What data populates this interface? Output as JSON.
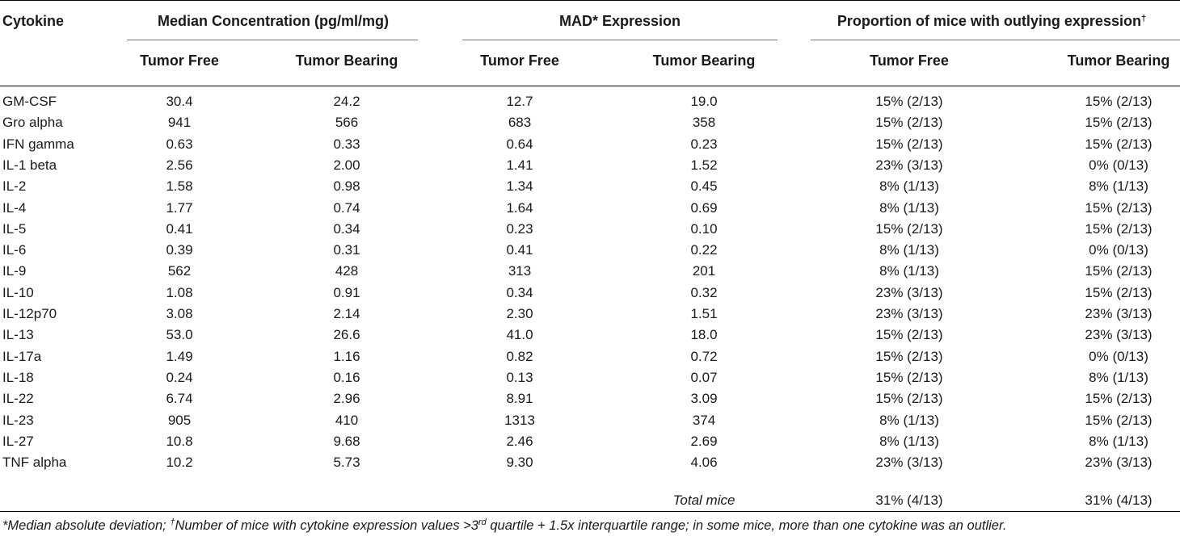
{
  "headers": {
    "cytokine": "Cytokine",
    "median": "Median Concentration (pg/ml/mg)",
    "mad": "MAD* Expression",
    "proportion": "Proportion of mice with outlying expression",
    "proportion_mark": "†",
    "tumor_free": "Tumor Free",
    "tumor_bearing": "Tumor Bearing"
  },
  "rows": [
    {
      "cytokine": "GM-CSF",
      "med_tf": "30.4",
      "med_tb": "24.2",
      "mad_tf": "12.7",
      "mad_tb": "19.0",
      "prop_tf": "15% (2/13)",
      "prop_tb": "15% (2/13)"
    },
    {
      "cytokine": "Gro alpha",
      "med_tf": "941",
      "med_tb": "566",
      "mad_tf": "683",
      "mad_tb": "358",
      "prop_tf": "15% (2/13)",
      "prop_tb": "15% (2/13)"
    },
    {
      "cytokine": "IFN gamma",
      "med_tf": "0.63",
      "med_tb": "0.33",
      "mad_tf": "0.64",
      "mad_tb": "0.23",
      "prop_tf": "15% (2/13)",
      "prop_tb": "15% (2/13)"
    },
    {
      "cytokine": "IL-1 beta",
      "med_tf": "2.56",
      "med_tb": "2.00",
      "mad_tf": "1.41",
      "mad_tb": "1.52",
      "prop_tf": "23% (3/13)",
      "prop_tb": "0% (0/13)"
    },
    {
      "cytokine": "IL-2",
      "med_tf": "1.58",
      "med_tb": "0.98",
      "mad_tf": "1.34",
      "mad_tb": "0.45",
      "prop_tf": "8% (1/13)",
      "prop_tb": "8% (1/13)"
    },
    {
      "cytokine": "IL-4",
      "med_tf": "1.77",
      "med_tb": "0.74",
      "mad_tf": "1.64",
      "mad_tb": "0.69",
      "prop_tf": "8% (1/13)",
      "prop_tb": "15% (2/13)"
    },
    {
      "cytokine": "IL-5",
      "med_tf": "0.41",
      "med_tb": "0.34",
      "mad_tf": "0.23",
      "mad_tb": "0.10",
      "prop_tf": "15% (2/13)",
      "prop_tb": "15% (2/13)"
    },
    {
      "cytokine": "IL-6",
      "med_tf": "0.39",
      "med_tb": "0.31",
      "mad_tf": "0.41",
      "mad_tb": "0.22",
      "prop_tf": "8% (1/13)",
      "prop_tb": "0% (0/13)"
    },
    {
      "cytokine": "IL-9",
      "med_tf": "562",
      "med_tb": "428",
      "mad_tf": "313",
      "mad_tb": "201",
      "prop_tf": "8% (1/13)",
      "prop_tb": "15% (2/13)"
    },
    {
      "cytokine": "IL-10",
      "med_tf": "1.08",
      "med_tb": "0.91",
      "mad_tf": "0.34",
      "mad_tb": "0.32",
      "prop_tf": "23% (3/13)",
      "prop_tb": "15% (2/13)"
    },
    {
      "cytokine": "IL-12p70",
      "med_tf": "3.08",
      "med_tb": "2.14",
      "mad_tf": "2.30",
      "mad_tb": "1.51",
      "prop_tf": "23% (3/13)",
      "prop_tb": "23% (3/13)"
    },
    {
      "cytokine": "IL-13",
      "med_tf": "53.0",
      "med_tb": "26.6",
      "mad_tf": "41.0",
      "mad_tb": "18.0",
      "prop_tf": "15% (2/13)",
      "prop_tb": "23% (3/13)"
    },
    {
      "cytokine": "IL-17a",
      "med_tf": "1.49",
      "med_tb": "1.16",
      "mad_tf": "0.82",
      "mad_tb": "0.72",
      "prop_tf": "15% (2/13)",
      "prop_tb": "0% (0/13)"
    },
    {
      "cytokine": "IL-18",
      "med_tf": "0.24",
      "med_tb": "0.16",
      "mad_tf": "0.13",
      "mad_tb": "0.07",
      "prop_tf": "15% (2/13)",
      "prop_tb": "8% (1/13)"
    },
    {
      "cytokine": "IL-22",
      "med_tf": "6.74",
      "med_tb": "2.96",
      "mad_tf": "8.91",
      "mad_tb": "3.09",
      "prop_tf": "15% (2/13)",
      "prop_tb": "15% (2/13)"
    },
    {
      "cytokine": "IL-23",
      "med_tf": "905",
      "med_tb": "410",
      "mad_tf": "1313",
      "mad_tb": "374",
      "prop_tf": "8% (1/13)",
      "prop_tb": "15% (2/13)"
    },
    {
      "cytokine": "IL-27",
      "med_tf": "10.8",
      "med_tb": "9.68",
      "mad_tf": "2.46",
      "mad_tb": "2.69",
      "prop_tf": "8% (1/13)",
      "prop_tb": "8% (1/13)"
    },
    {
      "cytokine": "TNF alpha",
      "med_tf": "10.2",
      "med_tb": "5.73",
      "mad_tf": "9.30",
      "mad_tb": "4.06",
      "prop_tf": "23% (3/13)",
      "prop_tb": "23% (3/13)"
    }
  ],
  "total_row": {
    "label": "Total mice",
    "prop_tf": "31% (4/13)",
    "prop_tb": "31% (4/13)"
  },
  "footnote": {
    "part1": "*Median absolute deviation; ",
    "dagger": "†",
    "part2": "Number of mice with cytokine expression values >3",
    "rd": "rd",
    "part3": " quartile + 1.5x interquartile range; in some mice, more than one cytokine was an outlier."
  }
}
